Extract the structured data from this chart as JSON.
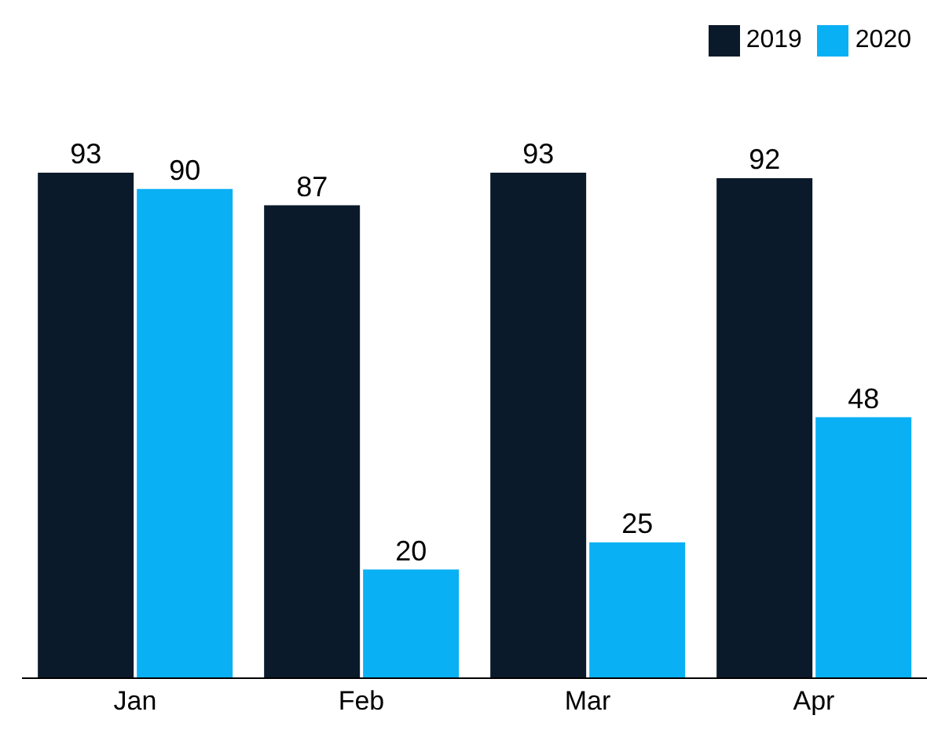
{
  "chart_data": {
    "type": "bar",
    "categories": [
      "Jan",
      "Feb",
      "Mar",
      "Apr"
    ],
    "series": [
      {
        "name": "2019",
        "color": "#0b1a2a",
        "values": [
          93,
          87,
          93,
          92
        ]
      },
      {
        "name": "2020",
        "color": "#0ab0f4",
        "values": [
          90,
          20,
          25,
          48
        ]
      }
    ],
    "data_labels": true,
    "legend": "top right",
    "grid": false
  }
}
